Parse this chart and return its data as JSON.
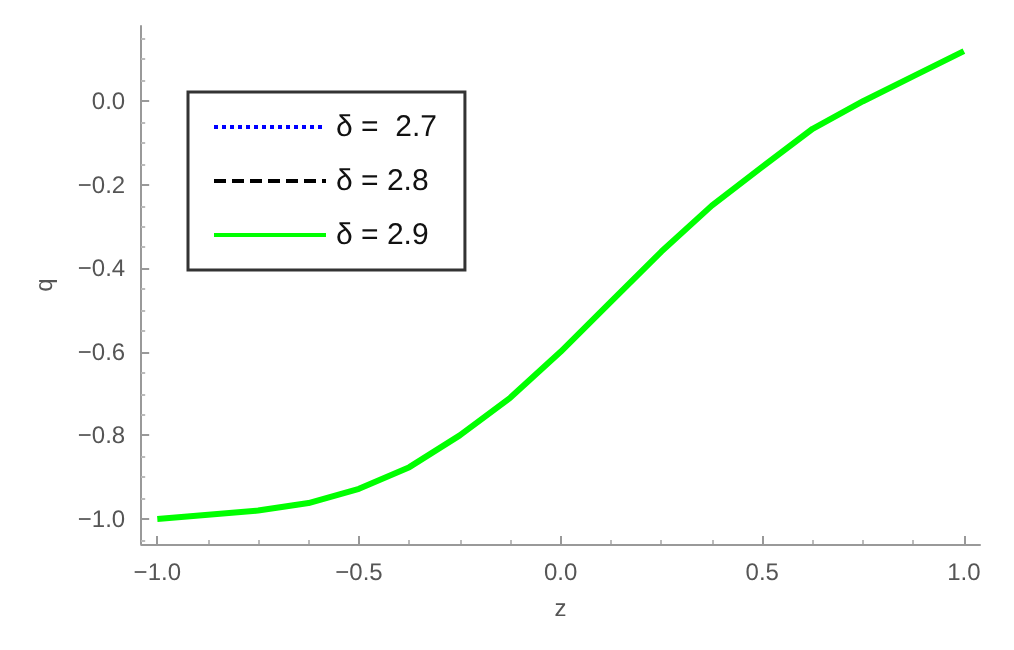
{
  "chart_data": {
    "type": "line",
    "xlabel": "z",
    "ylabel": "q",
    "x": [
      -1,
      -0.75,
      -0.625,
      -0.5,
      -0.375,
      -0.25,
      -0.125,
      0,
      0.125,
      0.25,
      0.375,
      0.5,
      0.625,
      0.75,
      0.875,
      1
    ],
    "series": [
      {
        "name": "δ =  2.7",
        "color": "#0000ff",
        "line_style": "dotted",
        "values": [
          null,
          null,
          null,
          null,
          null,
          null,
          null,
          null,
          null,
          null,
          null,
          null,
          null,
          null,
          null,
          null
        ]
      },
      {
        "name": "δ = 2.8",
        "color": "#000000",
        "line_style": "dashed",
        "values": [
          null,
          null,
          null,
          null,
          null,
          null,
          null,
          null,
          null,
          null,
          null,
          null,
          null,
          null,
          null,
          null
        ]
      },
      {
        "name": "δ = 2.9",
        "color": "#00ff00",
        "line_style": "solid",
        "values": [
          -1.0,
          -0.98,
          -0.962,
          -0.928,
          -0.876,
          -0.8,
          -0.71,
          -0.6,
          -0.48,
          -0.36,
          -0.25,
          -0.157,
          -0.066,
          0.0,
          0.06,
          0.12
        ]
      }
    ],
    "xlim": [
      -1.04,
      1.04
    ],
    "ylim": [
      -1.06,
      0.18
    ],
    "xticks": [
      {
        "value": -1,
        "label": "−1.0"
      },
      {
        "value": -0.5,
        "label": "−0.5"
      },
      {
        "value": 0,
        "label": "0.0"
      },
      {
        "value": 0.5,
        "label": "0.5"
      },
      {
        "value": 1,
        "label": "1.0"
      }
    ],
    "yticks": [
      {
        "value": -1,
        "label": "−1.0"
      },
      {
        "value": -0.8,
        "label": "−0.8"
      },
      {
        "value": -0.6,
        "label": "−0.6"
      },
      {
        "value": -0.4,
        "label": "−0.4"
      },
      {
        "value": -0.2,
        "label": "−0.2"
      },
      {
        "value": 0,
        "label": "0.0"
      }
    ],
    "grid": false,
    "legend": "top left",
    "marker": "none"
  }
}
